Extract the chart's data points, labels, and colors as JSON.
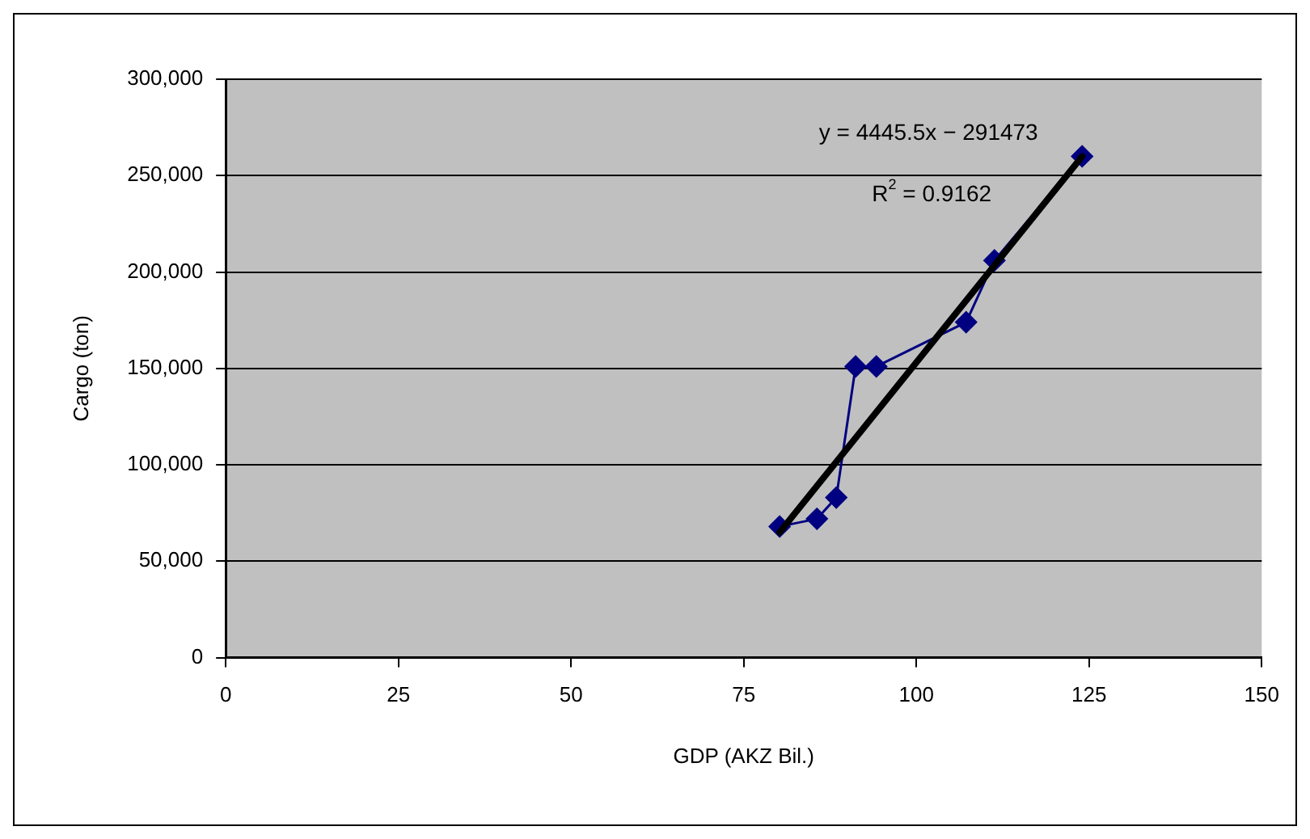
{
  "chart_data": {
    "type": "scatter",
    "xlabel": "GDP (AKZ Bil.)",
    "ylabel": "Cargo (ton)",
    "xlim": [
      0,
      150
    ],
    "xticks": [
      0,
      25,
      50,
      75,
      100,
      125,
      150
    ],
    "ylim": [
      0,
      300000
    ],
    "yticks": [
      {
        "value": 0,
        "label": "0"
      },
      {
        "value": 50000,
        "label": "50,000"
      },
      {
        "value": 100000,
        "label": "100,000"
      },
      {
        "value": 150000,
        "label": "150,000"
      },
      {
        "value": 200000,
        "label": "200,000"
      },
      {
        "value": 250000,
        "label": "250,000"
      },
      {
        "value": 300000,
        "label": "300,000"
      }
    ],
    "grid": "y",
    "legend": false,
    "marker": "diamond",
    "series": [
      {
        "type": "line",
        "color": "#000080",
        "x": [
          80.2,
          85.6,
          88.4,
          91.2,
          94.2,
          107.2,
          111.3,
          124
        ],
        "values": [
          68000,
          72000,
          83000,
          151000,
          151000,
          174000,
          206000,
          260000
        ]
      },
      {
        "type": "line",
        "color": "#000000",
        "marker": "none",
        "x": [
          80.2,
          124
        ],
        "values": [
          65000,
          260000
        ]
      }
    ],
    "annotations": [
      "y = 4445.5x − 291473",
      "R$^{2}$ = 0.9162"
    ]
  }
}
